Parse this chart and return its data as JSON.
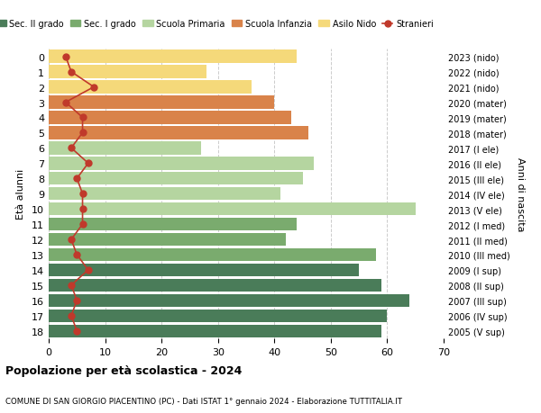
{
  "ages": [
    18,
    17,
    16,
    15,
    14,
    13,
    12,
    11,
    10,
    9,
    8,
    7,
    6,
    5,
    4,
    3,
    2,
    1,
    0
  ],
  "years": [
    "2005 (V sup)",
    "2006 (IV sup)",
    "2007 (III sup)",
    "2008 (II sup)",
    "2009 (I sup)",
    "2010 (III med)",
    "2011 (II med)",
    "2012 (I med)",
    "2013 (V ele)",
    "2014 (IV ele)",
    "2015 (III ele)",
    "2016 (II ele)",
    "2017 (I ele)",
    "2018 (mater)",
    "2019 (mater)",
    "2020 (mater)",
    "2021 (nido)",
    "2022 (nido)",
    "2023 (nido)"
  ],
  "bar_values": [
    59,
    60,
    64,
    59,
    55,
    58,
    42,
    44,
    65,
    41,
    45,
    47,
    27,
    46,
    43,
    40,
    36,
    28,
    44
  ],
  "bar_colors": [
    "#4a7c59",
    "#4a7c59",
    "#4a7c59",
    "#4a7c59",
    "#4a7c59",
    "#7aab6e",
    "#7aab6e",
    "#7aab6e",
    "#b5d5a0",
    "#b5d5a0",
    "#b5d5a0",
    "#b5d5a0",
    "#b5d5a0",
    "#d9834a",
    "#d9834a",
    "#d9834a",
    "#f5d97a",
    "#f5d97a",
    "#f5d97a"
  ],
  "stranieri_values": [
    5,
    4,
    5,
    4,
    7,
    5,
    4,
    6,
    6,
    6,
    5,
    7,
    4,
    6,
    6,
    3,
    8,
    4,
    3
  ],
  "legend_labels": [
    "Sec. II grado",
    "Sec. I grado",
    "Scuola Primaria",
    "Scuola Infanzia",
    "Asilo Nido",
    "Stranieri"
  ],
  "legend_colors": [
    "#4a7c59",
    "#7aab6e",
    "#b5d5a0",
    "#d9834a",
    "#f5d97a",
    "#c0392b"
  ],
  "title": "Popolazione per età scolastica - 2024",
  "subtitle": "COMUNE DI SAN GIORGIO PIACENTINO (PC) - Dati ISTAT 1° gennaio 2024 - Elaborazione TUTTITALIA.IT",
  "ylabel_left": "Età alunni",
  "ylabel_right": "Anni di nascita",
  "xlim": [
    0,
    70
  ],
  "background_color": "#ffffff",
  "grid_color": "#cccccc",
  "stranieri_color": "#c0392b"
}
